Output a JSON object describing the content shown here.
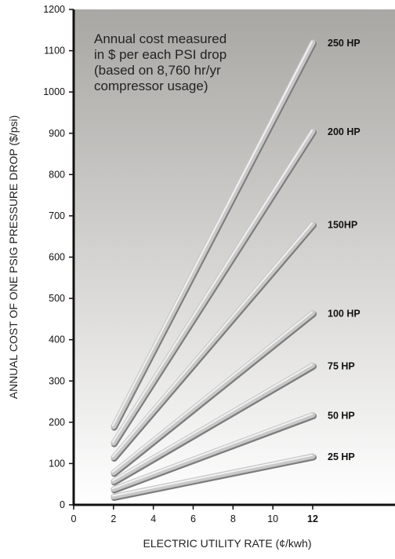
{
  "chart_data": {
    "type": "line",
    "title": "",
    "annotation": [
      "Annual cost measured",
      "in $ per each PSI drop",
      "(based on 8,760 hr/yr",
      "compressor usage)"
    ],
    "xlabel": "ELECTRIC UTILITY RATE (¢/kwh)",
    "ylabel": "ANNUAL COST OF ONE PSIG PRESSURE DROP ($/psi)",
    "xlim": [
      0,
      12
    ],
    "ylim": [
      0,
      1200
    ],
    "x_ticks": [
      "0",
      "2",
      "4",
      "6",
      "8",
      "10",
      "12"
    ],
    "y_ticks": [
      "0",
      "100",
      "200",
      "300",
      "400",
      "500",
      "600",
      "700",
      "800",
      "900",
      "1000",
      "1100",
      "1200"
    ],
    "grid": false,
    "series": [
      {
        "name": "250 HP",
        "x": [
          2,
          12
        ],
        "y": [
          190,
          1120
        ]
      },
      {
        "name": "200 HP",
        "x": [
          2,
          12
        ],
        "y": [
          150,
          905
        ]
      },
      {
        "name": "150HP",
        "x": [
          2,
          12
        ],
        "y": [
          115,
          680
        ]
      },
      {
        "name": "100 HP",
        "x": [
          2,
          12
        ],
        "y": [
          78,
          465
        ]
      },
      {
        "name": "75 HP",
        "x": [
          2,
          12
        ],
        "y": [
          57,
          338
        ]
      },
      {
        "name": "50 HP",
        "x": [
          2,
          12
        ],
        "y": [
          38,
          218
        ]
      },
      {
        "name": "25 HP",
        "x": [
          2,
          12
        ],
        "y": [
          20,
          118
        ]
      }
    ],
    "colors": {
      "background_top": "#a9a7a3",
      "background_bottom": "#ffffff",
      "line": "#c8c8c8",
      "line_highlight": "#f2f2f2",
      "line_shadow": "#7c7c7c"
    }
  }
}
